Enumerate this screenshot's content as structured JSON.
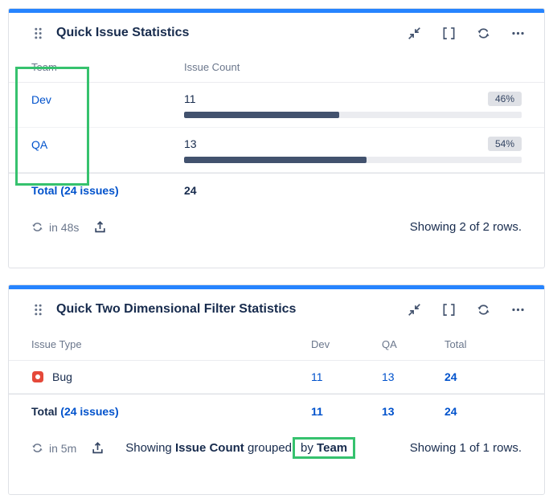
{
  "colors": {
    "accent_blue": "#2684FF",
    "link_blue": "#0052CC",
    "bar_fill": "#42526E",
    "badge_bg": "#DFE1E6",
    "highlight_green": "#36C26E",
    "bug_red": "#E5493A"
  },
  "panel1": {
    "title": "Quick Issue Statistics",
    "col_team": "Team",
    "col_count": "Issue Count",
    "rows": [
      {
        "team": "Dev",
        "count": "11",
        "percent_label": "46%",
        "percent": 46
      },
      {
        "team": "QA",
        "count": "13",
        "percent_label": "54%",
        "percent": 54
      }
    ],
    "total_label": "Total (24 issues)",
    "total_count": "24",
    "refresh_in": "in 48s",
    "rows_summary": "Showing 2 of 2 rows."
  },
  "panel2": {
    "title": "Quick Two Dimensional Filter Statistics",
    "col_issue_type": "Issue Type",
    "col_dev": "Dev",
    "col_qa": "QA",
    "col_total": "Total",
    "row_bug": {
      "label": "Bug",
      "dev": "11",
      "qa": "13",
      "total": "24"
    },
    "total_prefix": "Total",
    "total_link": "(24 issues)",
    "total_dev": "11",
    "total_qa": "13",
    "total_total": "24",
    "refresh_in": "in 5m",
    "summary_showing": "Showing",
    "summary_stat": "Issue Count",
    "summary_grouped": "grouped",
    "summary_by": "by",
    "summary_field": "Team",
    "rows_summary": "Showing 1 of 1 rows."
  },
  "chart_data": {
    "type": "bar",
    "categories": [
      "Dev",
      "QA"
    ],
    "values": [
      11,
      13
    ],
    "percents": [
      46,
      54
    ],
    "title": "Quick Issue Statistics",
    "xlabel": "Team",
    "ylabel": "Issue Count",
    "total": 24
  }
}
